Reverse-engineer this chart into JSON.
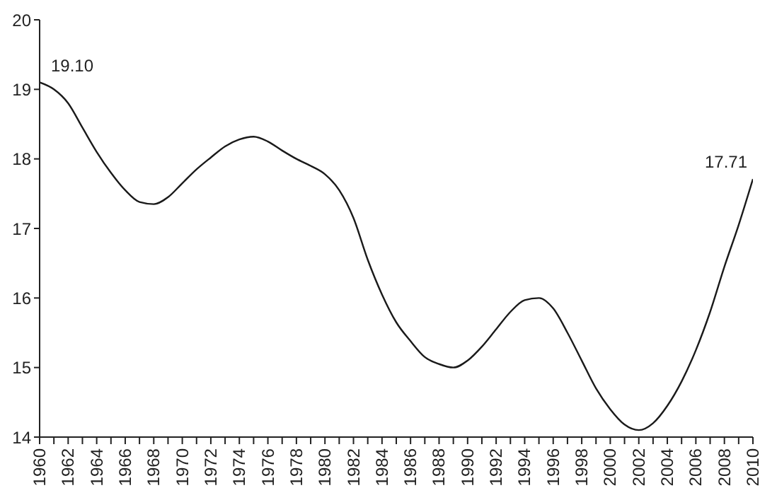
{
  "chart_data": {
    "type": "line",
    "x": [
      1960,
      1961,
      1962,
      1963,
      1964,
      1965,
      1966,
      1967,
      1968,
      1969,
      1970,
      1971,
      1972,
      1973,
      1974,
      1975,
      1976,
      1977,
      1978,
      1979,
      1980,
      1981,
      1982,
      1983,
      1984,
      1985,
      1986,
      1987,
      1988,
      1989,
      1990,
      1991,
      1992,
      1993,
      1994,
      1995,
      1996,
      1997,
      1998,
      1999,
      2000,
      2001,
      2002,
      2003,
      2004,
      2005,
      2006,
      2007,
      2008,
      2009,
      2010
    ],
    "series": [
      {
        "color": "#1a1a1a",
        "values": [
          19.1,
          19.0,
          18.8,
          18.45,
          18.1,
          17.8,
          17.55,
          17.38,
          17.35,
          17.45,
          17.65,
          17.85,
          18.02,
          18.18,
          18.28,
          18.32,
          18.25,
          18.12,
          18.0,
          17.9,
          17.78,
          17.55,
          17.15,
          16.55,
          16.05,
          15.65,
          15.38,
          15.15,
          15.05,
          15.0,
          15.1,
          15.3,
          15.55,
          15.8,
          15.97,
          16.0,
          15.85,
          15.5,
          15.1,
          14.7,
          14.4,
          14.18,
          14.1,
          14.2,
          14.45,
          14.8,
          15.25,
          15.8,
          16.45,
          17.05,
          17.71
        ]
      }
    ],
    "xlim": [
      1960,
      2010
    ],
    "xticks": [
      1960,
      {
        "value": 1961,
        "label": null
      },
      1962,
      {
        "value": 1963,
        "label": null
      },
      1964,
      {
        "value": 1965,
        "label": null
      },
      1966,
      {
        "value": 1967,
        "label": null
      },
      1968,
      {
        "value": 1969,
        "label": null
      },
      1970,
      {
        "value": 1971,
        "label": null
      },
      1972,
      {
        "value": 1973,
        "label": null
      },
      1974,
      {
        "value": 1975,
        "label": null
      },
      1976,
      {
        "value": 1977,
        "label": null
      },
      1978,
      {
        "value": 1979,
        "label": null
      },
      1980,
      {
        "value": 1981,
        "label": null
      },
      1982,
      {
        "value": 1983,
        "label": null
      },
      1984,
      {
        "value": 1985,
        "label": null
      },
      1986,
      {
        "value": 1987,
        "label": null
      },
      1988,
      {
        "value": 1989,
        "label": null
      },
      1990,
      {
        "value": 1991,
        "label": null
      },
      1992,
      {
        "value": 1993,
        "label": null
      },
      1994,
      {
        "value": 1995,
        "label": null
      },
      1996,
      {
        "value": 1997,
        "label": null
      },
      1998,
      {
        "value": 1999,
        "label": null
      },
      2000,
      {
        "value": 2001,
        "label": null
      },
      2002,
      {
        "value": 2003,
        "label": null
      },
      2004,
      {
        "value": 2005,
        "label": null
      },
      2006,
      {
        "value": 2007,
        "label": null
      },
      2008,
      {
        "value": 2009,
        "label": null
      },
      2010
    ],
    "ylim": [
      14,
      20
    ],
    "yticks": [
      14,
      15,
      16,
      17,
      18,
      19,
      20
    ],
    "annotations": [
      {
        "text": "19.10",
        "x": 1960,
        "y": 19.1
      },
      {
        "text": "17.71",
        "x": 2010,
        "y": 17.71
      }
    ],
    "grid": false,
    "legend": false,
    "marker": "none",
    "line_style": "solid"
  }
}
